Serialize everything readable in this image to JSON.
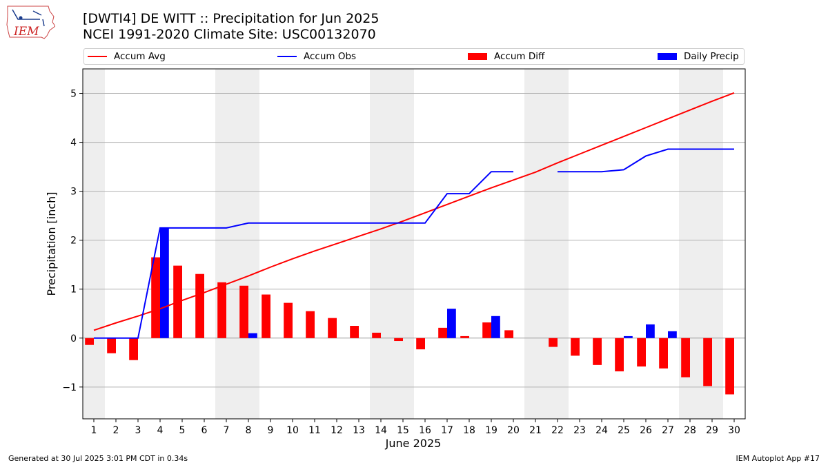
{
  "header": {
    "title_line1": "[DWTI4] DE WITT :: Precipitation for Jun 2025",
    "title_line2": "NCEI 1991-2020 Climate Site: USC00132070",
    "logo_text": "IEM"
  },
  "legend": {
    "accum_avg": "Accum Avg",
    "accum_obs": "Accum Obs",
    "accum_diff": "Accum Diff",
    "daily_precip": "Daily Precip"
  },
  "footer": {
    "generated": "Generated at 30 Jul 2025 3:01 PM CDT in 0.34s",
    "app": "IEM Autoplot App #17"
  },
  "colors": {
    "avg": "#ff0000",
    "obs": "#0000ff",
    "diff": "#ff0000",
    "daily": "#0000ff",
    "weekend_shade": "#eeeeee",
    "grid": "#b0b0b0"
  },
  "chart_data": {
    "type": "bar",
    "xlabel": "June 2025",
    "ylabel": "Precipitation [inch]",
    "xlim": [
      0.5,
      30.5
    ],
    "ylim": [
      -1.65,
      5.5
    ],
    "yticks": [
      -1,
      0,
      1,
      2,
      3,
      4,
      5
    ],
    "ytick_labels": [
      "−1",
      "0",
      "1",
      "2",
      "3",
      "4",
      "5"
    ],
    "days": [
      1,
      2,
      3,
      4,
      5,
      6,
      7,
      8,
      9,
      10,
      11,
      12,
      13,
      14,
      15,
      16,
      17,
      18,
      19,
      20,
      21,
      22,
      23,
      24,
      25,
      26,
      27,
      28,
      29,
      30
    ],
    "weekend_days": [
      1,
      7,
      8,
      14,
      15,
      21,
      22,
      28,
      29
    ],
    "grid": true,
    "series": [
      {
        "name": "Accum Avg",
        "type": "line",
        "values": [
          0.16,
          0.31,
          0.45,
          0.6,
          0.77,
          0.93,
          1.1,
          1.27,
          1.45,
          1.62,
          1.78,
          1.93,
          2.08,
          2.23,
          2.39,
          2.56,
          2.73,
          2.9,
          3.07,
          3.23,
          3.39,
          3.58,
          3.76,
          3.94,
          4.12,
          4.3,
          4.48,
          4.66,
          4.84,
          5.01
        ]
      },
      {
        "name": "Accum Obs",
        "type": "line",
        "values": [
          0.0,
          0.0,
          0.0,
          2.25,
          2.25,
          2.25,
          2.25,
          2.35,
          2.35,
          2.35,
          2.35,
          2.35,
          2.35,
          2.35,
          2.35,
          2.35,
          2.95,
          2.95,
          3.4,
          3.4,
          null,
          3.4,
          3.4,
          3.4,
          3.44,
          3.72,
          3.86,
          3.86,
          3.86,
          3.86
        ]
      },
      {
        "name": "Accum Diff",
        "type": "bar",
        "values": [
          -0.14,
          -0.31,
          -0.45,
          1.65,
          1.48,
          1.31,
          1.14,
          1.07,
          0.89,
          0.72,
          0.55,
          0.41,
          0.25,
          0.11,
          -0.06,
          -0.23,
          0.21,
          0.04,
          0.32,
          0.16,
          null,
          -0.18,
          -0.36,
          -0.55,
          -0.68,
          -0.58,
          -0.62,
          -0.8,
          -0.98,
          -1.15
        ]
      },
      {
        "name": "Daily Precip",
        "type": "bar",
        "values": [
          0,
          0,
          0,
          2.25,
          0,
          0,
          0,
          0.1,
          0,
          0,
          0,
          0,
          0,
          0,
          0,
          0,
          0.6,
          0,
          0.45,
          0,
          null,
          0,
          0,
          0,
          0.04,
          0.28,
          0.14,
          0,
          0,
          0
        ]
      }
    ]
  }
}
